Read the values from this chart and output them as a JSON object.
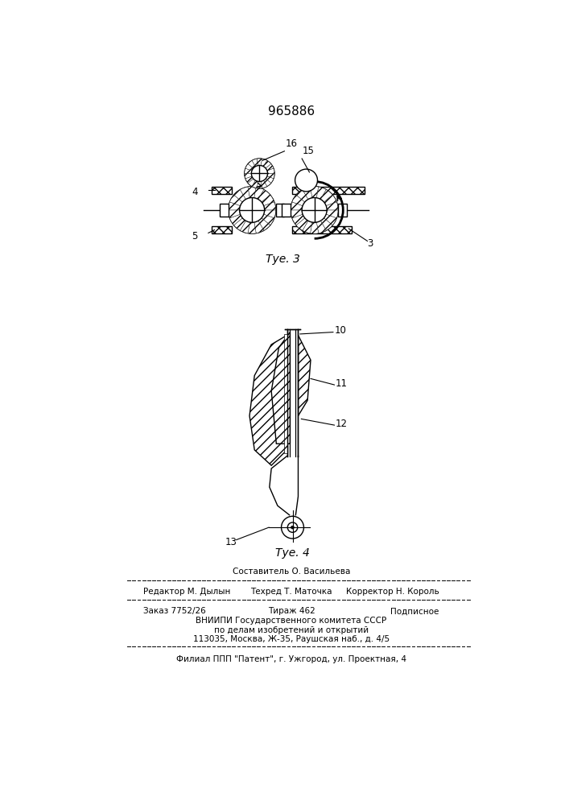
{
  "patent_number": "965886",
  "fig3_caption": "Τуе. 3",
  "fig4_caption": "Τуе. 4",
  "bg_color": "#ffffff",
  "line_color": "#000000",
  "footer": {
    "line1_center": "Составитель О. Васильева",
    "line2_left": "Редактор М. Дылын",
    "line2_center": "Техред Т. Маточка",
    "line2_right": "Корректор Н. Король",
    "line3_left": "Заказ 7752/26",
    "line3_center": "Тираж 462",
    "line3_right": "Подписное",
    "line4": "ВНИИПИ Государственного комитета СССР",
    "line5": "по делам изобретений и открытий",
    "line6": "113035, Москва, Ж-35, Раушская наб., д. 4/5",
    "line7": "Филиал ППП \"Патент\", г. Ужгород, ул. Проектная, 4"
  }
}
